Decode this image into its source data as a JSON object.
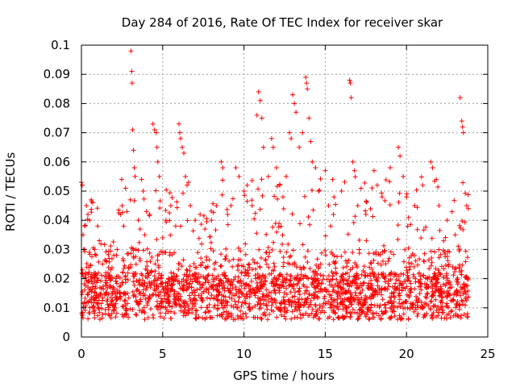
{
  "chart_data": {
    "type": "scatter",
    "title": "Day 284 of 2016, Rate Of TEC Index for receiver skar",
    "xlabel": "GPS time / hours",
    "ylabel": "ROTI / TECUs",
    "xlim": [
      0,
      25
    ],
    "ylim": [
      0,
      0.1
    ],
    "xticks": [
      0,
      5,
      10,
      15,
      20,
      25
    ],
    "xtick_labels": [
      "0",
      "5",
      "10",
      "15",
      "20",
      "25"
    ],
    "yticks": [
      0,
      0.01,
      0.02,
      0.03,
      0.04,
      0.05,
      0.06,
      0.07,
      0.08,
      0.09,
      0.1
    ],
    "ytick_labels": [
      "0",
      "0.01",
      "0.02",
      "0.03",
      "0.04",
      "0.05",
      "0.06",
      "0.07",
      "0.08",
      "0.09",
      "0.1"
    ],
    "grid": true,
    "marker": "+",
    "color": "#ff0000",
    "series": [
      {
        "name": "ROTI",
        "points": [
          [
            0.0,
            0.053
          ],
          [
            0.05,
            0.052
          ],
          [
            0.1,
            0.035
          ],
          [
            0.2,
            0.03
          ],
          [
            0.3,
            0.045
          ],
          [
            0.4,
            0.042
          ],
          [
            0.5,
            0.04
          ],
          [
            0.6,
            0.047
          ],
          [
            0.7,
            0.046
          ],
          [
            0.8,
            0.03
          ],
          [
            0.9,
            0.028
          ],
          [
            1.0,
            0.038
          ],
          [
            1.1,
            0.033
          ],
          [
            1.3,
            0.025
          ],
          [
            1.5,
            0.022
          ],
          [
            1.8,
            0.023
          ],
          [
            2.0,
            0.028
          ],
          [
            2.2,
            0.03
          ],
          [
            2.4,
            0.042
          ],
          [
            2.5,
            0.045
          ],
          [
            2.6,
            0.038
          ],
          [
            2.8,
            0.043
          ],
          [
            3.0,
            0.047
          ],
          [
            3.05,
            0.098
          ],
          [
            3.1,
            0.091
          ],
          [
            3.12,
            0.087
          ],
          [
            3.15,
            0.071
          ],
          [
            3.2,
            0.064
          ],
          [
            3.25,
            0.058
          ],
          [
            3.3,
            0.055
          ],
          [
            3.5,
            0.04
          ],
          [
            3.7,
            0.054
          ],
          [
            3.8,
            0.05
          ],
          [
            3.9,
            0.035
          ],
          [
            4.0,
            0.043
          ],
          [
            4.2,
            0.042
          ],
          [
            4.4,
            0.073
          ],
          [
            4.5,
            0.071
          ],
          [
            4.6,
            0.07
          ],
          [
            4.65,
            0.065
          ],
          [
            4.7,
            0.06
          ],
          [
            4.8,
            0.055
          ],
          [
            5.0,
            0.034
          ],
          [
            5.2,
            0.04
          ],
          [
            5.5,
            0.045
          ],
          [
            5.8,
            0.038
          ],
          [
            6.0,
            0.073
          ],
          [
            6.05,
            0.07
          ],
          [
            6.1,
            0.068
          ],
          [
            6.2,
            0.065
          ],
          [
            6.3,
            0.063
          ],
          [
            6.4,
            0.055
          ],
          [
            6.5,
            0.052
          ],
          [
            6.7,
            0.045
          ],
          [
            7.0,
            0.04
          ],
          [
            7.3,
            0.042
          ],
          [
            7.6,
            0.037
          ],
          [
            8.0,
            0.04
          ],
          [
            8.3,
            0.045
          ],
          [
            8.6,
            0.06
          ],
          [
            8.7,
            0.058
          ],
          [
            9.0,
            0.042
          ],
          [
            9.2,
            0.045
          ],
          [
            9.5,
            0.058
          ],
          [
            9.7,
            0.055
          ],
          [
            10.0,
            0.05
          ],
          [
            10.2,
            0.052
          ],
          [
            10.5,
            0.045
          ],
          [
            10.8,
            0.076
          ],
          [
            10.9,
            0.084
          ],
          [
            11.0,
            0.081
          ],
          [
            11.1,
            0.075
          ],
          [
            11.2,
            0.065
          ],
          [
            11.5,
            0.055
          ],
          [
            11.7,
            0.068
          ],
          [
            11.8,
            0.065
          ],
          [
            12.0,
            0.058
          ],
          [
            12.2,
            0.052
          ],
          [
            12.4,
            0.048
          ],
          [
            12.6,
            0.055
          ],
          [
            12.8,
            0.07
          ],
          [
            12.9,
            0.068
          ],
          [
            13.0,
            0.083
          ],
          [
            13.1,
            0.08
          ],
          [
            13.2,
            0.077
          ],
          [
            13.4,
            0.065
          ],
          [
            13.6,
            0.07
          ],
          [
            13.8,
            0.089
          ],
          [
            13.85,
            0.087
          ],
          [
            13.9,
            0.085
          ],
          [
            14.0,
            0.075
          ],
          [
            14.1,
            0.067
          ],
          [
            14.2,
            0.06
          ],
          [
            14.4,
            0.058
          ],
          [
            14.6,
            0.05
          ],
          [
            15.0,
            0.057
          ],
          [
            15.2,
            0.045
          ],
          [
            15.5,
            0.042
          ],
          [
            16.0,
            0.05
          ],
          [
            16.5,
            0.088
          ],
          [
            16.55,
            0.087
          ],
          [
            16.6,
            0.082
          ],
          [
            16.7,
            0.06
          ],
          [
            16.8,
            0.057
          ],
          [
            17.0,
            0.045
          ],
          [
            17.5,
            0.042
          ],
          [
            18.0,
            0.057
          ],
          [
            18.2,
            0.052
          ],
          [
            18.5,
            0.048
          ],
          [
            19.0,
            0.058
          ],
          [
            19.5,
            0.065
          ],
          [
            19.6,
            0.062
          ],
          [
            19.8,
            0.055
          ],
          [
            20.0,
            0.048
          ],
          [
            20.5,
            0.045
          ],
          [
            21.0,
            0.052
          ],
          [
            21.5,
            0.06
          ],
          [
            21.6,
            0.058
          ],
          [
            22.0,
            0.045
          ],
          [
            22.5,
            0.04
          ],
          [
            23.0,
            0.035
          ],
          [
            23.3,
            0.082
          ],
          [
            23.4,
            0.074
          ],
          [
            23.45,
            0.072
          ],
          [
            23.5,
            0.07
          ],
          [
            23.7,
            0.045
          ],
          [
            23.8,
            0.044
          ]
        ]
      }
    ]
  }
}
